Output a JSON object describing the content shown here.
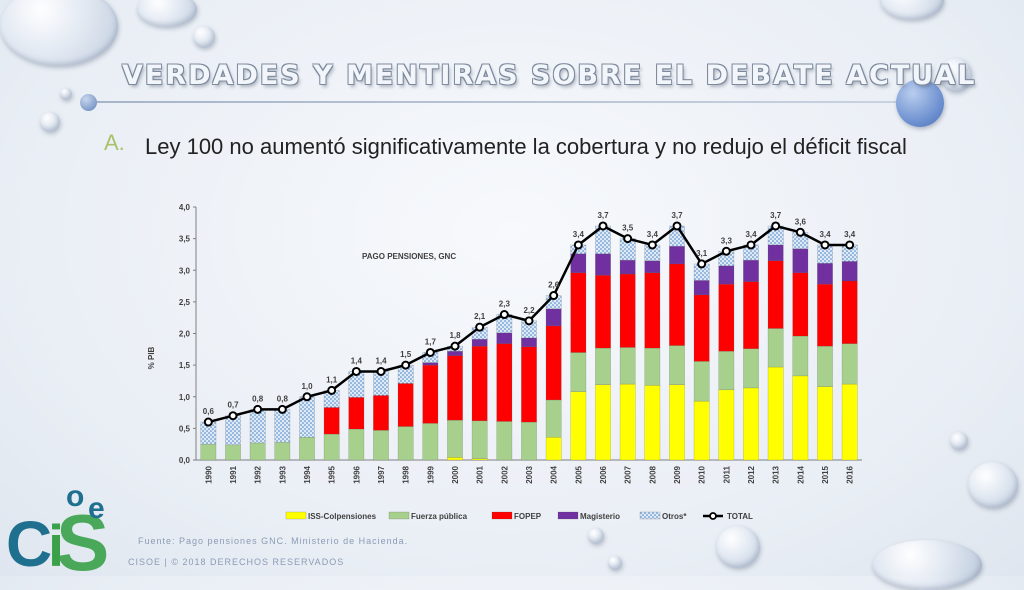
{
  "slide": {
    "title": "VERDADES Y MENTIRAS SOBRE EL DEBATE ACTUAL",
    "bullet_letter": "A.",
    "bullet_text": "Ley 100 no aumentó significativamente la cobertura y no redujo el déficit fiscal",
    "source": "Fuente: Pago pensiones GNC. Ministerio de Hacienda.",
    "footer": "CISOE   |   © 2018 DERECHOS RESERVADOS",
    "logo_text": "CiSoe",
    "colors": {
      "title_rule": "#a7b4c8",
      "bullet_accent": "#a8c26a",
      "footer_text": "#8b9bb5"
    }
  },
  "chart_data": {
    "type": "bar",
    "stacked": true,
    "title": "PAGO PENSIONES, GNC",
    "xlabel": "",
    "ylabel": "% PIB",
    "ylim": [
      0,
      4.0
    ],
    "yticks": [
      "0,0",
      "0,5",
      "1,0",
      "1,5",
      "2,0",
      "2,5",
      "3,0",
      "3,5",
      "4,0"
    ],
    "grid": false,
    "legend_position": "bottom",
    "categories": [
      "1990",
      "1991",
      "1992",
      "1993",
      "1994",
      "1995",
      "1996",
      "1997",
      "1998",
      "1999",
      "2000",
      "2001",
      "2002",
      "2003",
      "2004",
      "2005",
      "2006",
      "2007",
      "2008",
      "2009",
      "2010",
      "2011",
      "2012",
      "2013",
      "2014",
      "2015",
      "2016"
    ],
    "series": [
      {
        "name": "ISS-Colpensiones",
        "color": "#ffff00",
        "values": [
          0,
          0,
          0,
          0,
          0,
          0,
          0,
          0,
          0,
          0,
          0.04,
          0.02,
          0,
          0,
          0.36,
          1.08,
          1.19,
          1.2,
          1.18,
          1.19,
          0.93,
          1.11,
          1.14,
          1.47,
          1.33,
          1.16,
          1.2
        ]
      },
      {
        "name": "Fuerza pública",
        "color": "#a8d08d",
        "values": [
          0.25,
          0.24,
          0.27,
          0.28,
          0.36,
          0.41,
          0.49,
          0.47,
          0.53,
          0.58,
          0.59,
          0.6,
          0.61,
          0.6,
          0.59,
          0.62,
          0.58,
          0.58,
          0.59,
          0.62,
          0.63,
          0.61,
          0.62,
          0.61,
          0.63,
          0.64,
          0.64
        ]
      },
      {
        "name": "FOPEP",
        "color": "#ff0000",
        "values": [
          0,
          0,
          0,
          0,
          0,
          0.42,
          0.5,
          0.55,
          0.68,
          0.92,
          1.02,
          1.18,
          1.23,
          1.19,
          1.17,
          1.26,
          1.15,
          1.16,
          1.19,
          1.29,
          1.05,
          1.06,
          1.06,
          1.07,
          1.0,
          0.98,
          0.99
        ]
      },
      {
        "name": "Magisterio",
        "color": "#7030a0",
        "values": [
          0,
          0,
          0,
          0,
          0,
          0,
          0,
          0,
          0,
          0.04,
          0.07,
          0.11,
          0.17,
          0.14,
          0.27,
          0.3,
          0.34,
          0.22,
          0.19,
          0.28,
          0.23,
          0.29,
          0.34,
          0.25,
          0.38,
          0.33,
          0.31
        ]
      },
      {
        "name": "Otros*",
        "color": "#9dc3e6",
        "pattern": true,
        "values": [
          0.35,
          0.46,
          0.53,
          0.52,
          0.64,
          0.27,
          0.41,
          0.38,
          0.29,
          0.16,
          0.08,
          0.19,
          0.29,
          0.27,
          0.21,
          0.14,
          0.44,
          0.34,
          0.25,
          0.32,
          0.26,
          0.23,
          0.24,
          0.3,
          0.26,
          0.29,
          0.26
        ]
      }
    ],
    "total": {
      "name": "TOTAL",
      "color": "#000000",
      "values": [
        0.6,
        0.7,
        0.8,
        0.8,
        1.0,
        1.1,
        1.4,
        1.4,
        1.5,
        1.7,
        1.8,
        2.1,
        2.3,
        2.2,
        2.6,
        3.4,
        3.7,
        3.5,
        3.4,
        3.7,
        3.1,
        3.3,
        3.4,
        3.7,
        3.6,
        3.4,
        3.4
      ]
    },
    "total_labels": [
      "0,6",
      "0,7",
      "0,8",
      "0,8",
      "1,0",
      "1,1",
      "1,4",
      "1,4",
      "1,5",
      "1,7",
      "1,8",
      "2,1",
      "2,3",
      "2,2",
      "2,6",
      "3,4",
      "3,7",
      "3,5",
      "3,4",
      "3,7",
      "3,1",
      "3,3",
      "3,4",
      "3,7",
      "3,6",
      "3,4",
      "3,4"
    ]
  }
}
